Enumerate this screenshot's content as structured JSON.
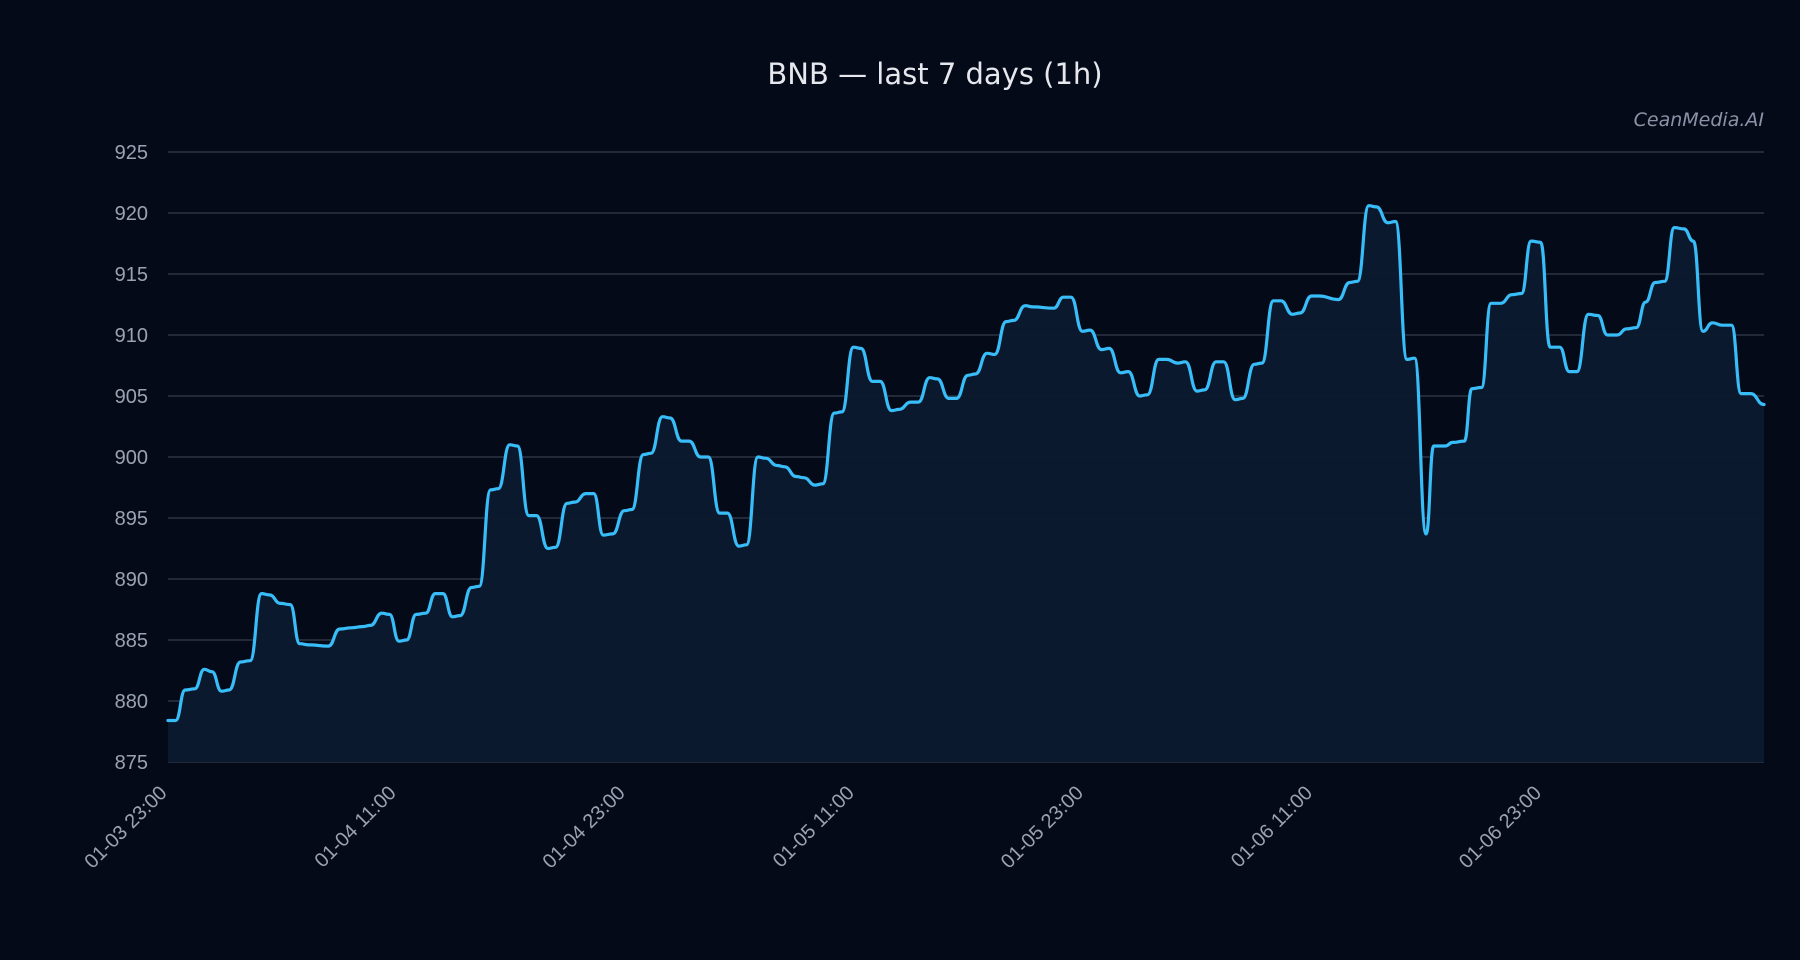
{
  "chart_data": {
    "type": "area",
    "title": "BNB — last 7 days (1h)",
    "watermark": "CeanMedia.AI",
    "xlabel": "",
    "ylabel": "",
    "ylim": [
      875,
      925
    ],
    "y_ticks": [
      875,
      880,
      885,
      890,
      895,
      900,
      905,
      910,
      915,
      920,
      925
    ],
    "x_ticks": [
      "01-03 23:00",
      "01-04 11:00",
      "01-04 23:00",
      "01-05 11:00",
      "01-05 23:00",
      "01-06 11:00",
      "01-06 23:00"
    ],
    "x_tick_positions": [
      0,
      12,
      24,
      36,
      48,
      60,
      72
    ],
    "x_range": [
      0,
      83.6
    ],
    "grid": "horizontal",
    "line_color": "#38bdf8",
    "fill_color": "#0b1a2e",
    "background": "#050a18",
    "series": [
      {
        "points": [
          [
            0,
            878.4
          ],
          [
            0.4,
            878.4
          ],
          [
            0.9,
            880.9
          ],
          [
            1.4,
            881.0
          ],
          [
            1.9,
            882.6
          ],
          [
            2.3,
            882.4
          ],
          [
            2.8,
            880.8
          ],
          [
            3.2,
            880.9
          ],
          [
            3.8,
            883.2
          ],
          [
            4.3,
            883.3
          ],
          [
            4.9,
            888.8
          ],
          [
            5.3,
            888.7
          ],
          [
            5.9,
            888.0
          ],
          [
            6.4,
            887.9
          ],
          [
            6.9,
            884.7
          ],
          [
            7.4,
            884.6
          ],
          [
            8.4,
            884.5
          ],
          [
            9.0,
            885.9
          ],
          [
            9.6,
            886.0
          ],
          [
            10.2,
            886.1
          ],
          [
            10.6,
            886.2
          ],
          [
            11.2,
            887.2
          ],
          [
            11.6,
            887.1
          ],
          [
            12.1,
            884.9
          ],
          [
            12.5,
            885.0
          ],
          [
            13.0,
            887.1
          ],
          [
            13.5,
            887.2
          ],
          [
            14.0,
            888.8
          ],
          [
            14.4,
            888.8
          ],
          [
            14.9,
            886.9
          ],
          [
            15.3,
            887.0
          ],
          [
            15.9,
            889.3
          ],
          [
            16.3,
            889.4
          ],
          [
            16.9,
            897.3
          ],
          [
            17.3,
            897.4
          ],
          [
            17.9,
            901.0
          ],
          [
            18.3,
            900.9
          ],
          [
            18.9,
            895.2
          ],
          [
            19.3,
            895.2
          ],
          [
            19.9,
            892.5
          ],
          [
            20.3,
            892.6
          ],
          [
            20.9,
            896.2
          ],
          [
            21.3,
            896.3
          ],
          [
            21.9,
            897.0
          ],
          [
            22.3,
            897.0
          ],
          [
            22.8,
            893.6
          ],
          [
            23.3,
            893.7
          ],
          [
            23.9,
            895.6
          ],
          [
            24.3,
            895.7
          ],
          [
            24.9,
            900.2
          ],
          [
            25.3,
            900.3
          ],
          [
            25.9,
            903.3
          ],
          [
            26.3,
            903.2
          ],
          [
            26.9,
            901.3
          ],
          [
            27.3,
            901.3
          ],
          [
            27.9,
            900.0
          ],
          [
            28.3,
            900.0
          ],
          [
            28.9,
            895.4
          ],
          [
            29.3,
            895.4
          ],
          [
            29.9,
            892.7
          ],
          [
            30.3,
            892.8
          ],
          [
            30.9,
            900.0
          ],
          [
            31.3,
            899.9
          ],
          [
            31.9,
            899.3
          ],
          [
            32.3,
            899.2
          ],
          [
            32.9,
            898.4
          ],
          [
            33.3,
            898.3
          ],
          [
            33.9,
            897.7
          ],
          [
            34.3,
            897.8
          ],
          [
            34.9,
            903.6
          ],
          [
            35.3,
            903.7
          ],
          [
            35.9,
            909.0
          ],
          [
            36.3,
            908.9
          ],
          [
            36.9,
            906.2
          ],
          [
            37.3,
            906.2
          ],
          [
            37.9,
            903.8
          ],
          [
            38.3,
            903.9
          ],
          [
            38.9,
            904.5
          ],
          [
            39.3,
            904.5
          ],
          [
            39.9,
            906.5
          ],
          [
            40.3,
            906.4
          ],
          [
            40.9,
            904.8
          ],
          [
            41.3,
            904.8
          ],
          [
            41.9,
            906.7
          ],
          [
            42.3,
            906.8
          ],
          [
            42.9,
            908.5
          ],
          [
            43.3,
            908.4
          ],
          [
            43.9,
            911.1
          ],
          [
            44.3,
            911.2
          ],
          [
            44.9,
            912.4
          ],
          [
            45.3,
            912.3
          ],
          [
            46.4,
            912.2
          ],
          [
            46.9,
            913.1
          ],
          [
            47.3,
            913.1
          ],
          [
            47.9,
            910.3
          ],
          [
            48.3,
            910.4
          ],
          [
            48.9,
            908.8
          ],
          [
            49.3,
            908.9
          ],
          [
            49.9,
            906.9
          ],
          [
            50.3,
            907.0
          ],
          [
            50.9,
            905.0
          ],
          [
            51.3,
            905.1
          ],
          [
            51.9,
            908.0
          ],
          [
            52.3,
            908.0
          ],
          [
            52.9,
            907.7
          ],
          [
            53.3,
            907.8
          ],
          [
            53.9,
            905.4
          ],
          [
            54.3,
            905.5
          ],
          [
            54.9,
            907.8
          ],
          [
            55.3,
            907.8
          ],
          [
            55.9,
            904.7
          ],
          [
            56.3,
            904.8
          ],
          [
            56.9,
            907.6
          ],
          [
            57.3,
            907.7
          ],
          [
            57.9,
            912.8
          ],
          [
            58.3,
            912.8
          ],
          [
            58.9,
            911.7
          ],
          [
            59.3,
            911.8
          ],
          [
            59.9,
            913.2
          ],
          [
            60.3,
            913.2
          ],
          [
            61.3,
            912.9
          ],
          [
            61.9,
            914.3
          ],
          [
            62.3,
            914.4
          ],
          [
            62.9,
            920.6
          ],
          [
            63.3,
            920.5
          ],
          [
            63.9,
            919.2
          ],
          [
            64.3,
            919.3
          ],
          [
            64.9,
            908.0
          ],
          [
            65.3,
            908.1
          ],
          [
            65.9,
            893.7
          ],
          [
            66.3,
            900.9
          ],
          [
            66.9,
            900.9
          ],
          [
            67.3,
            901.2
          ],
          [
            67.9,
            901.3
          ],
          [
            68.3,
            905.6
          ],
          [
            68.8,
            905.7
          ],
          [
            69.3,
            912.6
          ],
          [
            69.8,
            912.6
          ],
          [
            70.4,
            913.3
          ],
          [
            70.9,
            913.4
          ],
          [
            71.4,
            917.7
          ],
          [
            71.9,
            917.6
          ],
          [
            72.4,
            909.0
          ],
          [
            72.9,
            909.0
          ],
          [
            73.4,
            907.0
          ],
          [
            73.8,
            907.0
          ],
          [
            74.4,
            911.7
          ],
          [
            74.9,
            911.6
          ],
          [
            75.4,
            910.0
          ],
          [
            75.9,
            910.0
          ],
          [
            76.4,
            910.5
          ],
          [
            76.9,
            910.6
          ],
          [
            77.4,
            912.7
          ],
          [
            77.9,
            914.3
          ],
          [
            78.4,
            914.4
          ],
          [
            78.9,
            918.8
          ],
          [
            79.4,
            918.7
          ],
          [
            79.9,
            917.7
          ],
          [
            80.4,
            910.3
          ],
          [
            80.9,
            911.0
          ],
          [
            81.4,
            910.8
          ],
          [
            81.9,
            910.8
          ],
          [
            82.4,
            905.2
          ],
          [
            82.9,
            905.2
          ],
          [
            83.6,
            904.3
          ]
        ]
      }
    ]
  }
}
